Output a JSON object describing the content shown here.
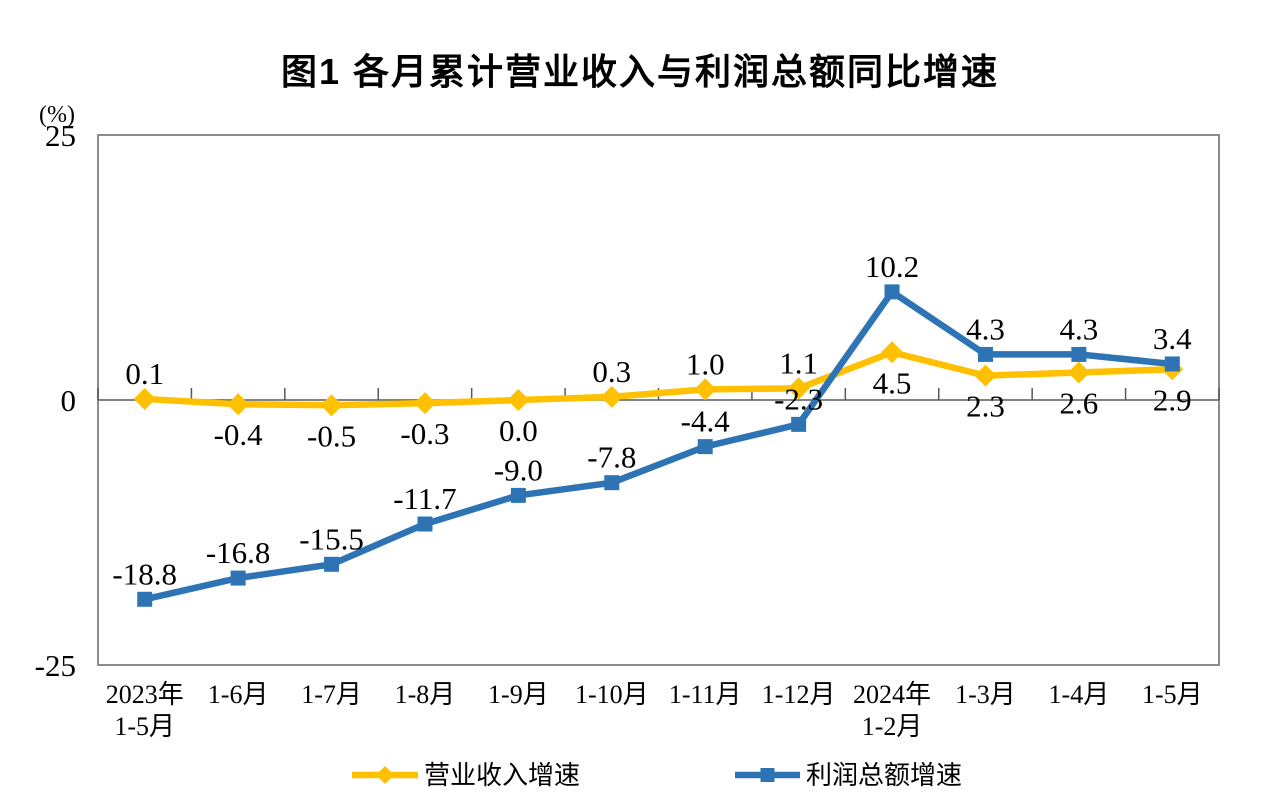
{
  "title": "图1 各月累计营业收入与利润总额同比增速",
  "y_axis_unit": "（%）",
  "chart_data": {
    "type": "line",
    "title": "图1 各月累计营业收入与利润总额同比增速",
    "categories": [
      "2023年\n1-5月",
      "1-6月",
      "1-7月",
      "1-8月",
      "1-9月",
      "1-10月",
      "1-11月",
      "1-12月",
      "2024年\n1-2月",
      "1-3月",
      "1-4月",
      "1-5月"
    ],
    "ylim": [
      -25,
      25
    ],
    "yticks": [
      {
        "value": 25,
        "label": "25"
      },
      {
        "value": 0,
        "label": "0"
      },
      {
        "value": -25,
        "label": "-25"
      }
    ],
    "grid": false,
    "legend_position": "bottom",
    "xlabel": "",
    "ylabel": "（%）",
    "series": [
      {
        "name": "营业收入增速",
        "color": "#FFC000",
        "marker": "diamond",
        "values": [
          0.1,
          -0.4,
          -0.5,
          -0.3,
          0.0,
          0.3,
          1.0,
          1.1,
          4.5,
          2.3,
          2.6,
          2.9
        ],
        "labels": [
          "0.1",
          "-0.4",
          "-0.5",
          "-0.3",
          "0.0",
          "0.3",
          "1.0",
          "1.1",
          "4.5",
          "2.3",
          "2.6",
          "2.9"
        ],
        "label_side": [
          "above",
          "below",
          "below",
          "below",
          "below",
          "above",
          "above",
          "above",
          "below",
          "below",
          "below",
          "below"
        ]
      },
      {
        "name": "利润总额增速",
        "color": "#2E74B5",
        "marker": "square",
        "values": [
          -18.8,
          -16.8,
          -15.5,
          -11.7,
          -9.0,
          -7.8,
          -4.4,
          -2.3,
          10.2,
          4.3,
          4.3,
          3.4
        ],
        "labels": [
          "-18.8",
          "-16.8",
          "-15.5",
          "-11.7",
          "-9.0",
          "-7.8",
          "-4.4",
          "-2.3",
          "10.2",
          "4.3",
          "4.3",
          "3.4"
        ],
        "label_side": [
          "above",
          "above",
          "above",
          "above",
          "above",
          "above",
          "above",
          "above",
          "above",
          "above",
          "above",
          "above"
        ]
      }
    ],
    "colors": {
      "revenue_line": "#FFC000",
      "profit_line": "#2E74B5",
      "plot_border": "#8C8C8C",
      "zero_axis": "#595959",
      "text": "#000000"
    }
  }
}
